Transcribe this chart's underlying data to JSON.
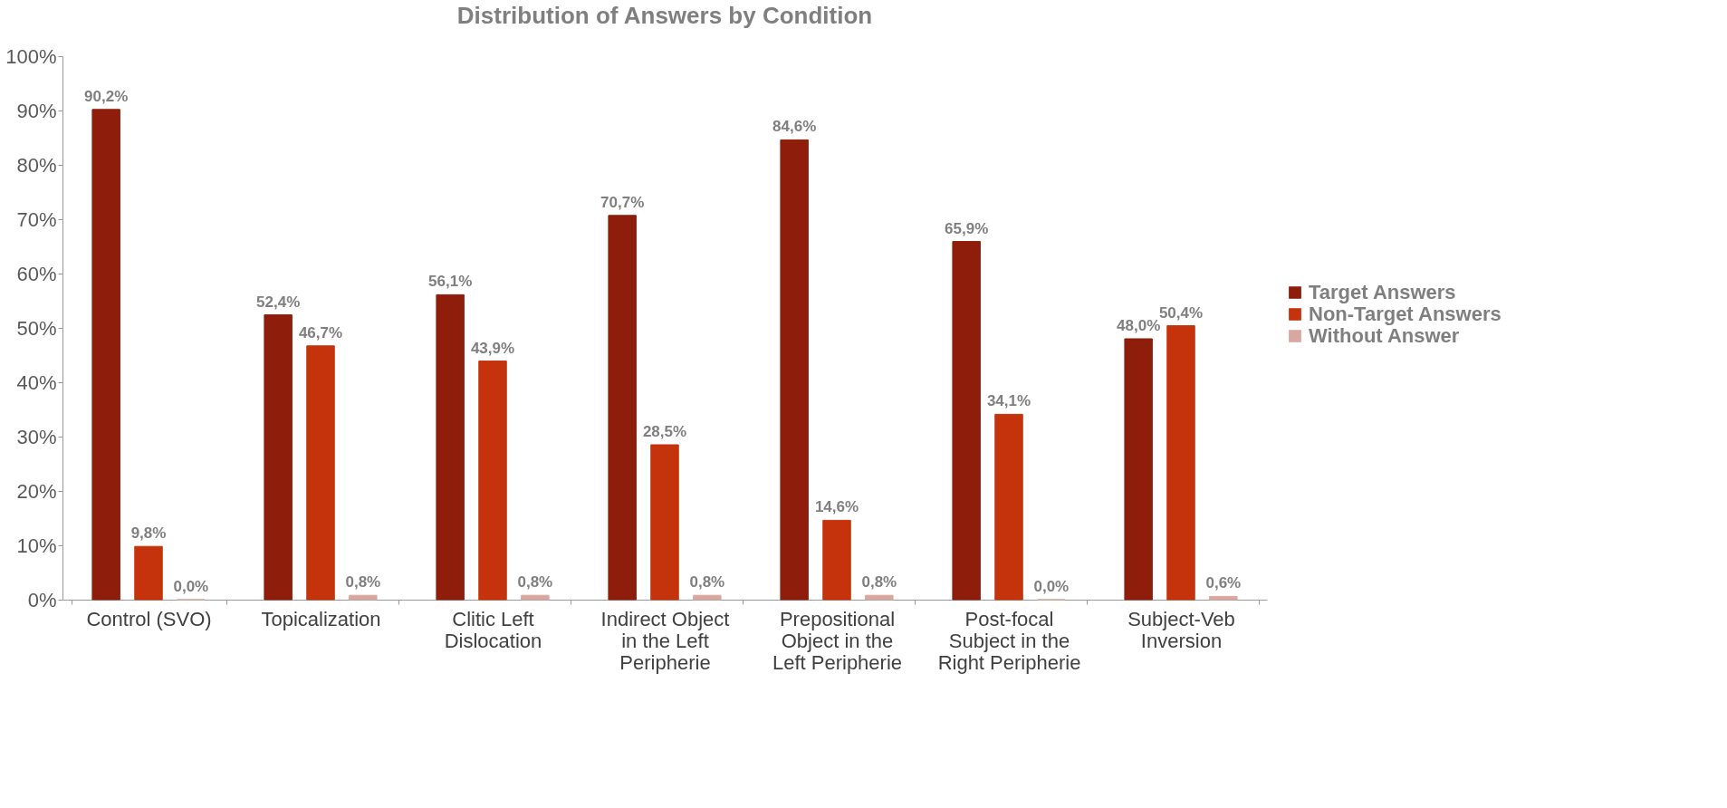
{
  "chart_data": {
    "type": "bar",
    "title": "Distribution of Answers by Condition",
    "categories": [
      "Control (SVO)",
      "Topicalization",
      "Clitic Left Dislocation",
      "Indirect Object in the Left Peripherie",
      "Prepositional Object in the Left Peripherie",
      "Post-focal Subject in the Right Peripherie",
      "Subject-Veb Inversion"
    ],
    "series": [
      {
        "name": "Target Answers",
        "color": "#8e1d0b",
        "values": [
          90.2,
          52.4,
          56.1,
          70.7,
          84.6,
          65.9,
          48.0
        ],
        "value_labels": [
          "90,2%",
          "52,4%",
          "56,1%",
          "70,7%",
          "84,6%",
          "65,9%",
          "48,0%"
        ]
      },
      {
        "name": "Non-Target Answers",
        "color": "#c4330c",
        "values": [
          9.8,
          46.7,
          43.9,
          28.5,
          14.6,
          34.1,
          50.4
        ],
        "value_labels": [
          "9,8%",
          "46,7%",
          "43,9%",
          "28,5%",
          "14,6%",
          "34,1%",
          "50,4%"
        ]
      },
      {
        "name": "Without Answer",
        "color": "#d8a8a0",
        "values": [
          0.0,
          0.8,
          0.8,
          0.8,
          0.8,
          0.0,
          0.6
        ],
        "value_labels": [
          "0,0%",
          "0,8%",
          "0,8%",
          "0,8%",
          "0,8%",
          "0,0%",
          "0,6%"
        ]
      }
    ],
    "ylim": [
      0,
      100
    ],
    "yticks": [
      {
        "value": 0,
        "label": "0%"
      },
      {
        "value": 10,
        "label": "10%"
      },
      {
        "value": 20,
        "label": "20%"
      },
      {
        "value": 30,
        "label": "30%"
      },
      {
        "value": 40,
        "label": "40%"
      },
      {
        "value": 50,
        "label": "50%"
      },
      {
        "value": 60,
        "label": "60%"
      },
      {
        "value": 70,
        "label": "70%"
      },
      {
        "value": 80,
        "label": "80%"
      },
      {
        "value": 90,
        "label": "90%"
      },
      {
        "value": 100,
        "label": "100%"
      }
    ],
    "grid": false,
    "legend": "right"
  }
}
